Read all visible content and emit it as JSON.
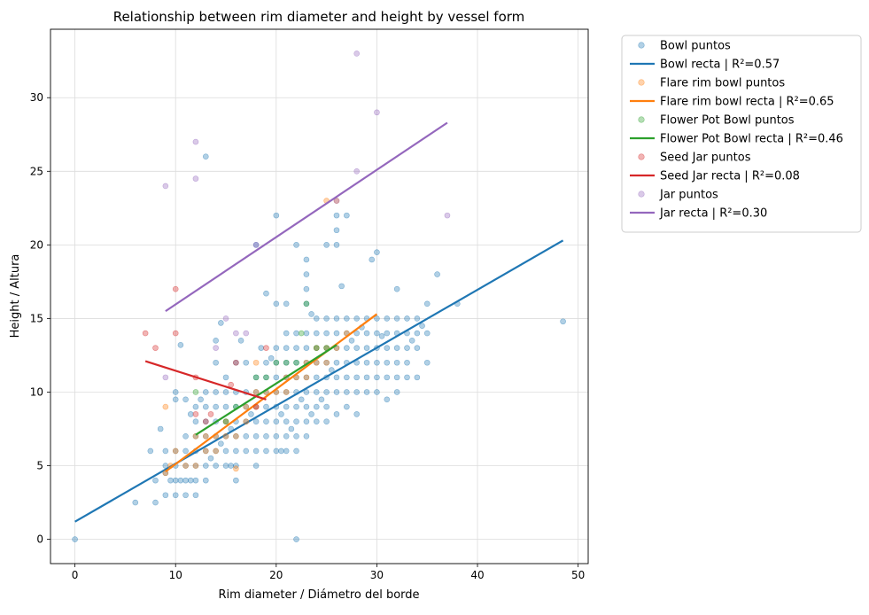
{
  "chart_data": {
    "type": "scatter",
    "title": "Relationship between rim diameter and height by vessel form",
    "xlabel": "Rim diameter / Diámetro del borde",
    "ylabel": "Height / Altura",
    "xlim": [
      -2.43,
      51.0
    ],
    "ylim": [
      -1.65,
      34.65
    ],
    "xticks": [
      0,
      10,
      20,
      30,
      40,
      50
    ],
    "yticks": [
      0,
      5,
      10,
      15,
      20,
      25,
      30
    ],
    "grid": true,
    "legend_position": "outside-right",
    "series": [
      {
        "name": "Bowl puntos",
        "kind": "points",
        "color": "#1f77b4",
        "points": [
          [
            0,
            0
          ],
          [
            6,
            2.5
          ],
          [
            7.5,
            6
          ],
          [
            8,
            2.5
          ],
          [
            8,
            4
          ],
          [
            8.5,
            7.5
          ],
          [
            9,
            3
          ],
          [
            9,
            4.5
          ],
          [
            9,
            5
          ],
          [
            9,
            6
          ],
          [
            9.5,
            4
          ],
          [
            10,
            3
          ],
          [
            10,
            4
          ],
          [
            10,
            5
          ],
          [
            10,
            6
          ],
          [
            10,
            9.5
          ],
          [
            10,
            10
          ],
          [
            10.5,
            13.2
          ],
          [
            10.5,
            4
          ],
          [
            11,
            3
          ],
          [
            11,
            4
          ],
          [
            11,
            5
          ],
          [
            11,
            6
          ],
          [
            11,
            7
          ],
          [
            11,
            9.5
          ],
          [
            11.5,
            4
          ],
          [
            11.5,
            8.5
          ],
          [
            12,
            4
          ],
          [
            12,
            5
          ],
          [
            12,
            6
          ],
          [
            12,
            7
          ],
          [
            12,
            8
          ],
          [
            12,
            9
          ],
          [
            12,
            3
          ],
          [
            12.5,
            9.5
          ],
          [
            13,
            26
          ],
          [
            13,
            4
          ],
          [
            13,
            5
          ],
          [
            13,
            6
          ],
          [
            13,
            7
          ],
          [
            13,
            8
          ],
          [
            13,
            9
          ],
          [
            13,
            10
          ],
          [
            13.5,
            5.5
          ],
          [
            14,
            5
          ],
          [
            14,
            6
          ],
          [
            14,
            7
          ],
          [
            14,
            8
          ],
          [
            14,
            9
          ],
          [
            14,
            10
          ],
          [
            14,
            12
          ],
          [
            14,
            13.5
          ],
          [
            14.5,
            14.7
          ],
          [
            14.5,
            6.5
          ],
          [
            15,
            5
          ],
          [
            15,
            6
          ],
          [
            15,
            7
          ],
          [
            15,
            8
          ],
          [
            15,
            9
          ],
          [
            15,
            10
          ],
          [
            15,
            11
          ],
          [
            15.5,
            5
          ],
          [
            15.5,
            7.5
          ],
          [
            16,
            4
          ],
          [
            16,
            5
          ],
          [
            16,
            6
          ],
          [
            16,
            7
          ],
          [
            16,
            8
          ],
          [
            16,
            9
          ],
          [
            16,
            10
          ],
          [
            16,
            12
          ],
          [
            16.5,
            13.5
          ],
          [
            17,
            6
          ],
          [
            17,
            7
          ],
          [
            17,
            8
          ],
          [
            17,
            9
          ],
          [
            17,
            10
          ],
          [
            17,
            12
          ],
          [
            17.5,
            8.5
          ],
          [
            18,
            5
          ],
          [
            18,
            6
          ],
          [
            18,
            7
          ],
          [
            18,
            8
          ],
          [
            18,
            9
          ],
          [
            18,
            10
          ],
          [
            18,
            11
          ],
          [
            18,
            20
          ],
          [
            18.5,
            13
          ],
          [
            19,
            6
          ],
          [
            19,
            7
          ],
          [
            19,
            8
          ],
          [
            19,
            9
          ],
          [
            19,
            10
          ],
          [
            19,
            11
          ],
          [
            19,
            12
          ],
          [
            19,
            16.7
          ],
          [
            19.5,
            12.3
          ],
          [
            20,
            6
          ],
          [
            20,
            7
          ],
          [
            20,
            8
          ],
          [
            20,
            9
          ],
          [
            20,
            10
          ],
          [
            20,
            11
          ],
          [
            20,
            12
          ],
          [
            20,
            13
          ],
          [
            20,
            16
          ],
          [
            20,
            22
          ],
          [
            20.5,
            6
          ],
          [
            20.5,
            8.5
          ],
          [
            21,
            6
          ],
          [
            21,
            7
          ],
          [
            21,
            8
          ],
          [
            21,
            9
          ],
          [
            21,
            10
          ],
          [
            21,
            11
          ],
          [
            21,
            12
          ],
          [
            21,
            13
          ],
          [
            21,
            14
          ],
          [
            21,
            16
          ],
          [
            21.5,
            7.5
          ],
          [
            22,
            0
          ],
          [
            22,
            6
          ],
          [
            22,
            7
          ],
          [
            22,
            8
          ],
          [
            22,
            9
          ],
          [
            22,
            10
          ],
          [
            22,
            11
          ],
          [
            22,
            12
          ],
          [
            22,
            13
          ],
          [
            22,
            14
          ],
          [
            22,
            20
          ],
          [
            22.5,
            9.5
          ],
          [
            23,
            7
          ],
          [
            23,
            8
          ],
          [
            23,
            9
          ],
          [
            23,
            10
          ],
          [
            23,
            11
          ],
          [
            23,
            12
          ],
          [
            23,
            13
          ],
          [
            23,
            14
          ],
          [
            23,
            16
          ],
          [
            23,
            17
          ],
          [
            23,
            18
          ],
          [
            23,
            19
          ],
          [
            23.5,
            8.5
          ],
          [
            23.5,
            15.3
          ],
          [
            24,
            8
          ],
          [
            24,
            9
          ],
          [
            24,
            10
          ],
          [
            24,
            11
          ],
          [
            24,
            12
          ],
          [
            24,
            13
          ],
          [
            24,
            14
          ],
          [
            24,
            15
          ],
          [
            24.5,
            9.5
          ],
          [
            25,
            8
          ],
          [
            25,
            9
          ],
          [
            25,
            10
          ],
          [
            25,
            11
          ],
          [
            25,
            12
          ],
          [
            25,
            13
          ],
          [
            25,
            14
          ],
          [
            25,
            15
          ],
          [
            25,
            20
          ],
          [
            25.5,
            11.5
          ],
          [
            26,
            8.5
          ],
          [
            26,
            10
          ],
          [
            26,
            11
          ],
          [
            26,
            12
          ],
          [
            26,
            13
          ],
          [
            26,
            14
          ],
          [
            26,
            15
          ],
          [
            26,
            20
          ],
          [
            26,
            21
          ],
          [
            26,
            22
          ],
          [
            26.5,
            17.2
          ],
          [
            27,
            9
          ],
          [
            27,
            10
          ],
          [
            27,
            11
          ],
          [
            27,
            12
          ],
          [
            27,
            13
          ],
          [
            27,
            14
          ],
          [
            27,
            15
          ],
          [
            27,
            22
          ],
          [
            27.5,
            13.5
          ],
          [
            28,
            8.5
          ],
          [
            28,
            10
          ],
          [
            28,
            11
          ],
          [
            28,
            12
          ],
          [
            28,
            13
          ],
          [
            28,
            14
          ],
          [
            28,
            15
          ],
          [
            28.5,
            14.4
          ],
          [
            29,
            10
          ],
          [
            29,
            11
          ],
          [
            29,
            12
          ],
          [
            29,
            13
          ],
          [
            29,
            14
          ],
          [
            29,
            15
          ],
          [
            29.5,
            19
          ],
          [
            30,
            10
          ],
          [
            30,
            11
          ],
          [
            30,
            12
          ],
          [
            30,
            13
          ],
          [
            30,
            14
          ],
          [
            30,
            15
          ],
          [
            30,
            19.5
          ],
          [
            30.5,
            13.8
          ],
          [
            31,
            9.5
          ],
          [
            31,
            11
          ],
          [
            31,
            12
          ],
          [
            31,
            13
          ],
          [
            31,
            14
          ],
          [
            31,
            15
          ],
          [
            32,
            10
          ],
          [
            32,
            11
          ],
          [
            32,
            12
          ],
          [
            32,
            13
          ],
          [
            32,
            14
          ],
          [
            32,
            15
          ],
          [
            32,
            17
          ],
          [
            33,
            11
          ],
          [
            33,
            12
          ],
          [
            33,
            13
          ],
          [
            33,
            14
          ],
          [
            33,
            15
          ],
          [
            33.5,
            13.5
          ],
          [
            34,
            11
          ],
          [
            34,
            13
          ],
          [
            34,
            14
          ],
          [
            34,
            15
          ],
          [
            34.5,
            14.5
          ],
          [
            35,
            12
          ],
          [
            35,
            14
          ],
          [
            35,
            16
          ],
          [
            36,
            18
          ],
          [
            38,
            16
          ],
          [
            48.5,
            14.8
          ]
        ]
      },
      {
        "name": "Bowl recta | R²=0.57",
        "kind": "line",
        "color": "#1f77b4",
        "x": [
          0,
          48.5
        ],
        "y": [
          1.2,
          20.3
        ]
      },
      {
        "name": "Flare rim bowl puntos",
        "kind": "points",
        "color": "#ff7f0e",
        "points": [
          [
            9,
            9
          ],
          [
            9,
            4.5
          ],
          [
            9.5,
            5
          ],
          [
            10,
            6
          ],
          [
            11,
            5
          ],
          [
            12,
            5
          ],
          [
            12,
            7
          ],
          [
            13,
            6
          ],
          [
            13,
            7
          ],
          [
            14,
            6
          ],
          [
            14,
            7
          ],
          [
            15,
            7
          ],
          [
            15,
            8
          ],
          [
            16,
            4.8
          ],
          [
            16,
            7
          ],
          [
            17,
            8
          ],
          [
            17,
            9
          ],
          [
            18,
            9
          ],
          [
            18,
            10
          ],
          [
            18,
            12
          ],
          [
            19,
            10
          ],
          [
            20,
            10
          ],
          [
            21,
            10
          ],
          [
            21,
            11
          ],
          [
            22,
            11
          ],
          [
            23,
            11
          ],
          [
            23,
            12
          ],
          [
            24,
            12
          ],
          [
            24,
            13
          ],
          [
            25,
            12
          ],
          [
            25,
            13
          ],
          [
            25,
            23
          ],
          [
            26,
            23
          ],
          [
            26,
            13
          ],
          [
            27,
            14
          ]
        ]
      },
      {
        "name": "Flare rim bowl recta | R²=0.65",
        "kind": "line",
        "color": "#ff7f0e",
        "x": [
          9,
          30
        ],
        "y": [
          4.6,
          15.3
        ]
      },
      {
        "name": "Flower Pot Bowl puntos",
        "kind": "points",
        "color": "#2ca02c",
        "points": [
          [
            12,
            10
          ],
          [
            15,
            8
          ],
          [
            16,
            9
          ],
          [
            18,
            11
          ],
          [
            19,
            11
          ],
          [
            20,
            12
          ],
          [
            21,
            12
          ],
          [
            22,
            12
          ],
          [
            22.5,
            14
          ],
          [
            23,
            16
          ],
          [
            24,
            13
          ],
          [
            25,
            13
          ]
        ]
      },
      {
        "name": "Flower Pot Bowl recta | R²=0.46",
        "kind": "line",
        "color": "#2ca02c",
        "x": [
          12,
          26
        ],
        "y": [
          7.1,
          13.2
        ]
      },
      {
        "name": "Seed Jar puntos",
        "kind": "points",
        "color": "#d62728",
        "points": [
          [
            7,
            14
          ],
          [
            8,
            13
          ],
          [
            10,
            14
          ],
          [
            10,
            17
          ],
          [
            12,
            11
          ],
          [
            12,
            8.5
          ],
          [
            13,
            8
          ],
          [
            13.5,
            8.5
          ],
          [
            15.5,
            10.5
          ],
          [
            16,
            12
          ],
          [
            18,
            9
          ],
          [
            19,
            13
          ]
        ]
      },
      {
        "name": "Seed Jar recta | R²=0.08",
        "kind": "line",
        "color": "#d62728",
        "x": [
          7,
          19
        ],
        "y": [
          12.1,
          9.5
        ]
      },
      {
        "name": "Jar puntos",
        "kind": "points",
        "color": "#9467bd",
        "points": [
          [
            9,
            11
          ],
          [
            9,
            24
          ],
          [
            12,
            27
          ],
          [
            12,
            24.5
          ],
          [
            14,
            13
          ],
          [
            15,
            15
          ],
          [
            16,
            14
          ],
          [
            17,
            14
          ],
          [
            18,
            20
          ],
          [
            26,
            23
          ],
          [
            28,
            33
          ],
          [
            28,
            25
          ],
          [
            30,
            29
          ],
          [
            37,
            22
          ]
        ]
      },
      {
        "name": "Jar recta | R²=0.30",
        "kind": "line",
        "color": "#9467bd",
        "x": [
          9,
          37
        ],
        "y": [
          15.5,
          28.3
        ]
      }
    ]
  }
}
